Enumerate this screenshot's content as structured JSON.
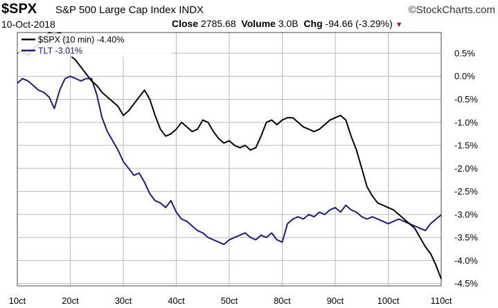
{
  "header": {
    "symbol": "$SPX",
    "description": "S&P 500 Large Cap Index",
    "exchange": "INDX",
    "brand": "©StockCharts.com",
    "date": "10-Oct-2018",
    "close_label": "Close",
    "close_value": "2785.68",
    "volume_label": "Volume",
    "volume_value": "3.0B",
    "chg_label": "Chg",
    "chg_value": "-94.66 (-3.29%)",
    "chg_indicator": "▼"
  },
  "colors": {
    "spx": "#000000",
    "tlt": "#1f1a78",
    "grid": "#b8b8b8"
  },
  "chart_data": {
    "type": "line",
    "title": "$SPX S&P 500 Large Cap Index INDX",
    "xlabel": "",
    "ylabel": "%",
    "ylim": [
      -4.55,
      0.95
    ],
    "y_ticks": [
      0.5,
      0.0,
      -0.5,
      -1.0,
      -1.5,
      -2.0,
      -2.5,
      -3.0,
      -3.5,
      -4.0,
      -4.5
    ],
    "y_tick_labels": [
      "0.5%",
      "0.0%",
      "-0.5%",
      "-1.0%",
      "-1.5%",
      "-2.0%",
      "-2.5%",
      "-3.0%",
      "-3.5%",
      "-4.0%",
      "-4.5%"
    ],
    "x_range": [
      0,
      80
    ],
    "x_ticks": [
      0,
      10,
      20,
      30,
      40,
      50,
      60,
      70,
      80
    ],
    "x_tick_labels": [
      "10ct",
      "20ct",
      "30ct",
      "40ct",
      "50ct",
      "80ct",
      "90ct",
      "100ct",
      "110ct"
    ],
    "series": [
      {
        "name": "$SPX (10 min)",
        "legend": "$SPX (10 min) -4.40%",
        "x": [
          0,
          1,
          2,
          3,
          4,
          5,
          6,
          7,
          8,
          9,
          10,
          11,
          12,
          13,
          14,
          15,
          16,
          17,
          18,
          19,
          20,
          21,
          22,
          23,
          24,
          25,
          26,
          27,
          28,
          29,
          30,
          31,
          32,
          33,
          34,
          35,
          36,
          37,
          38,
          39,
          40,
          41,
          42,
          43,
          44,
          45,
          46,
          47,
          48,
          49,
          50,
          51,
          52,
          53,
          54,
          55,
          56,
          57,
          58,
          59,
          60,
          61,
          62,
          63,
          64,
          65,
          66,
          67,
          68,
          69,
          70,
          71,
          72,
          73,
          74,
          75,
          76,
          77,
          78,
          79,
          80
        ],
        "values": [
          0.5,
          0.55,
          0.45,
          0.6,
          0.7,
          0.8,
          0.95,
          0.9,
          0.95,
          0.85,
          0.45,
          0.35,
          0.2,
          0.05,
          -0.1,
          -0.2,
          -0.35,
          -0.45,
          -0.55,
          -0.65,
          -0.85,
          -0.75,
          -0.6,
          -0.45,
          -0.3,
          -0.5,
          -0.85,
          -1.15,
          -1.3,
          -1.25,
          -1.15,
          -1.0,
          -1.1,
          -1.2,
          -1.15,
          -0.95,
          -1.0,
          -1.2,
          -1.35,
          -1.45,
          -1.4,
          -1.5,
          -1.55,
          -1.5,
          -1.6,
          -1.55,
          -1.3,
          -1.0,
          -0.95,
          -1.05,
          -0.95,
          -0.9,
          -0.9,
          -1.0,
          -1.1,
          -1.15,
          -1.2,
          -1.15,
          -1.05,
          -0.95,
          -0.9,
          -0.85,
          -0.95,
          -1.3,
          -1.6,
          -2.0,
          -2.4,
          -2.6,
          -2.75,
          -2.8,
          -2.85,
          -2.9,
          -3.0,
          -3.1,
          -3.2,
          -3.3,
          -3.5,
          -3.7,
          -3.85,
          -4.1,
          -4.4
        ]
      },
      {
        "name": "TLT",
        "legend": "TLT -3.01%",
        "x": [
          0,
          1,
          2,
          3,
          4,
          5,
          6,
          7,
          8,
          9,
          10,
          11,
          12,
          13,
          14,
          15,
          16,
          17,
          18,
          19,
          20,
          21,
          22,
          23,
          24,
          25,
          26,
          27,
          28,
          29,
          30,
          31,
          32,
          33,
          34,
          35,
          36,
          37,
          38,
          39,
          40,
          41,
          42,
          43,
          44,
          45,
          46,
          47,
          48,
          49,
          50,
          51,
          52,
          53,
          54,
          55,
          56,
          57,
          58,
          59,
          60,
          61,
          62,
          63,
          64,
          65,
          66,
          67,
          68,
          69,
          70,
          71,
          72,
          73,
          74,
          75,
          76,
          77,
          78,
          79,
          80
        ],
        "values": [
          -0.15,
          -0.05,
          -0.1,
          -0.2,
          -0.3,
          -0.35,
          -0.45,
          -0.7,
          -0.3,
          -0.05,
          0.0,
          -0.05,
          -0.1,
          -0.05,
          -0.05,
          -0.4,
          -0.9,
          -1.2,
          -1.4,
          -1.6,
          -1.85,
          -2.0,
          -2.15,
          -2.1,
          -2.3,
          -2.55,
          -2.7,
          -2.75,
          -2.85,
          -2.7,
          -2.95,
          -3.1,
          -3.15,
          -3.25,
          -3.35,
          -3.4,
          -3.5,
          -3.55,
          -3.6,
          -3.65,
          -3.55,
          -3.5,
          -3.45,
          -3.4,
          -3.5,
          -3.55,
          -3.45,
          -3.5,
          -3.4,
          -3.55,
          -3.6,
          -3.2,
          -3.1,
          -3.05,
          -3.1,
          -3.0,
          -3.05,
          -2.95,
          -3.0,
          -2.9,
          -2.85,
          -2.95,
          -2.8,
          -2.9,
          -2.95,
          -3.05,
          -3.1,
          -3.05,
          -3.1,
          -3.15,
          -3.2,
          -3.15,
          -3.1,
          -3.15,
          -3.2,
          -3.25,
          -3.3,
          -3.35,
          -3.2,
          -3.1,
          -3.01
        ]
      }
    ]
  }
}
